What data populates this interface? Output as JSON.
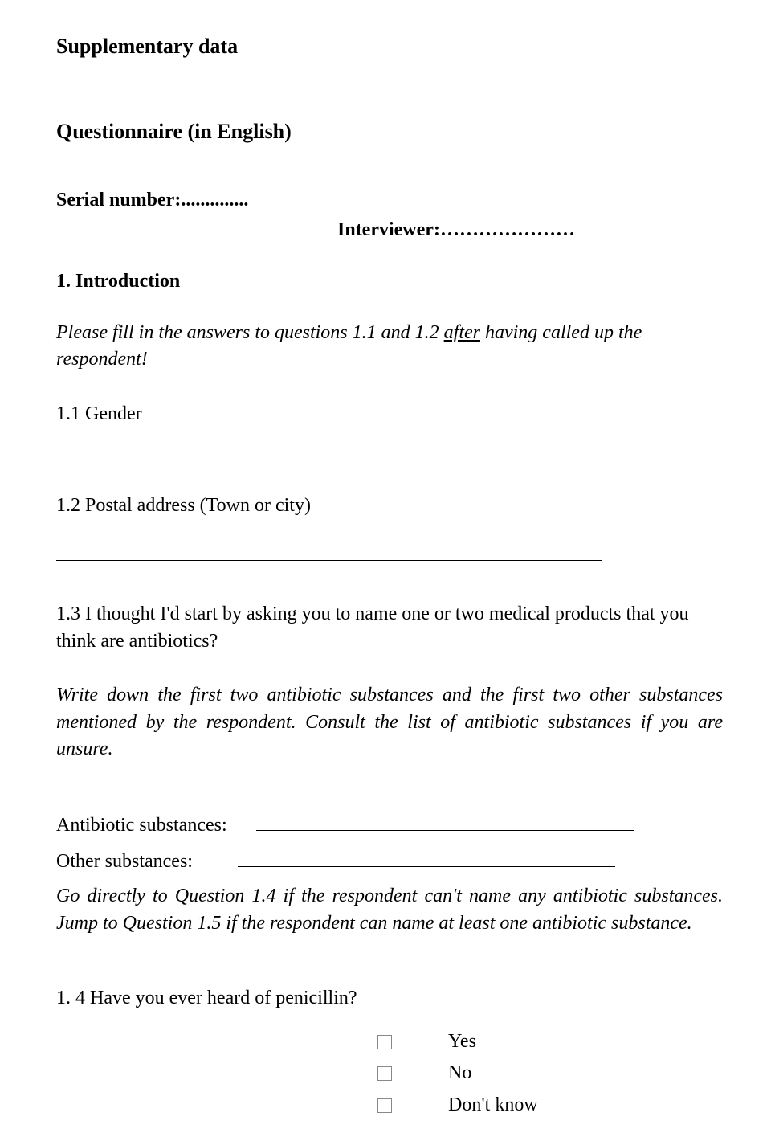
{
  "title": "Supplementary data",
  "subtitle": "Questionnaire (in English)",
  "serial_label": "Serial number:..............",
  "interviewer_label": "Interviewer:",
  "interviewer_dots": "…………………",
  "section1": {
    "heading": "1. Introduction",
    "instruction_pre": "Please fill in the answers to questions 1.1 and 1.2 ",
    "instruction_underline": "after",
    "instruction_post": " having called up the respondent!",
    "q11": "1.1 Gender",
    "q12": "1.2 Postal address (Town or city)",
    "q13": "1.3 I thought I'd start by asking you to name one or two medical products that you think are antibiotics?",
    "q13_instruction": "Write down the first two antibiotic substances and the first two other substances mentioned by the respondent. Consult the list of antibiotic substances if you are unsure.",
    "antibiotic_label": "Antibiotic substances:",
    "other_label": "Other substances:",
    "jump_instruction": "Go directly to Question 1.4 if the respondent can't name any antibiotic substances. Jump to Question 1.5 if the respondent can name at least one antibiotic substance.",
    "q14": "1. 4 Have you ever heard of penicillin?",
    "options": {
      "yes": "Yes",
      "no": "No",
      "dontknow": "Don't know"
    }
  },
  "colors": {
    "text": "#000000",
    "background": "#ffffff",
    "line": "#000000",
    "checkbox_border": "#888888"
  },
  "typography": {
    "font_family": "Times New Roman",
    "body_fontsize": 24,
    "title_fontsize": 26
  }
}
